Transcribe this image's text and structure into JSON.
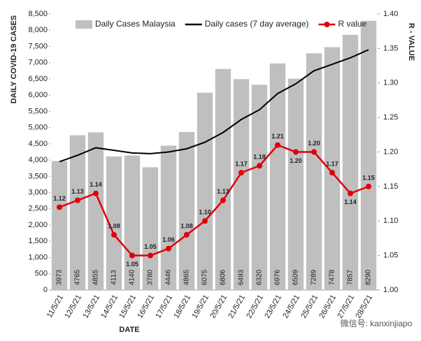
{
  "chart_data": {
    "type": "bar",
    "categories": [
      "11/5/21",
      "12/5/21",
      "13/5/21",
      "14/5/21",
      "15/5/21",
      "16/5/21",
      "17/5/21",
      "18/5/21",
      "19/5/21",
      "20/5/21",
      "21/5/21",
      "22/5/21",
      "23/5/21",
      "24/5/21",
      "25/5/21",
      "26/5/21",
      "27/5/21",
      "28/5/21"
    ],
    "series": [
      {
        "name": "Daily Cases Malaysia",
        "type": "bar",
        "color": "#bfbfbf",
        "values": [
          3973,
          4765,
          4855,
          4113,
          4140,
          3780,
          4446,
          4865,
          6075,
          6806,
          6493,
          6320,
          6976,
          6509,
          7289,
          7478,
          7857,
          8290
        ]
      },
      {
        "name": "Daily cases (7 day average)",
        "type": "line",
        "color": "#000000",
        "values": [
          3950,
          4150,
          4380,
          4300,
          4220,
          4200,
          4250,
          4350,
          4550,
          4850,
          5250,
          5550,
          6050,
          6350,
          6750,
          6950,
          7150,
          7400
        ]
      },
      {
        "name": "R value",
        "type": "line",
        "color": "#e0000b",
        "axis": "y2",
        "values": [
          1.12,
          1.13,
          1.14,
          1.08,
          1.05,
          1.05,
          1.06,
          1.08,
          1.1,
          1.13,
          1.17,
          1.18,
          1.21,
          1.2,
          1.2,
          1.17,
          1.14,
          1.15
        ],
        "value_labels": [
          "1.12",
          "1.13",
          "1.14",
          "1.08",
          "1.05",
          "1.05",
          "1.06",
          "1.08",
          "1.10",
          "1.13",
          "1.17",
          "1.18",
          "1.21",
          "1.20",
          "1.20",
          "1.17",
          "1.14",
          "1.15"
        ]
      }
    ],
    "y_label": "DAILY COVID-19 CASES",
    "y2_label": "R - VALUE",
    "x_label": "DATE",
    "ylim": [
      0,
      8500
    ],
    "yticks": [
      0,
      500,
      {
        "value": 1000,
        "label": "1,000"
      },
      {
        "value": 1500,
        "label": "1,500"
      },
      {
        "value": 2000,
        "label": "2,000"
      },
      {
        "value": 2500,
        "label": "2,500"
      },
      {
        "value": 3000,
        "label": "3,000"
      },
      {
        "value": 3500,
        "label": "3,500"
      },
      {
        "value": 4000,
        "label": "4,000"
      },
      {
        "value": 4500,
        "label": "4,500"
      },
      {
        "value": 5000,
        "label": "5,000"
      },
      {
        "value": 5500,
        "label": "5,500"
      },
      {
        "value": 6000,
        "label": "6,000"
      },
      {
        "value": 6500,
        "label": "6,500"
      },
      {
        "value": 7000,
        "label": "7,000"
      },
      {
        "value": 7500,
        "label": "7,500"
      },
      {
        "value": 8000,
        "label": "8,000"
      },
      {
        "value": 8500,
        "label": "8,500"
      }
    ],
    "y2lim": [
      1.0,
      1.4
    ],
    "y2ticks": [
      {
        "value": 1.0,
        "label": "1.00"
      },
      1.05,
      {
        "value": 1.1,
        "label": "1.10"
      },
      1.15,
      {
        "value": 1.2,
        "label": "1.20"
      },
      1.25,
      {
        "value": 1.3,
        "label": "1.30"
      },
      1.35,
      {
        "value": 1.4,
        "label": "1.40"
      }
    ],
    "legend": "top",
    "annotation": "微信号: kanxinjiapo"
  }
}
